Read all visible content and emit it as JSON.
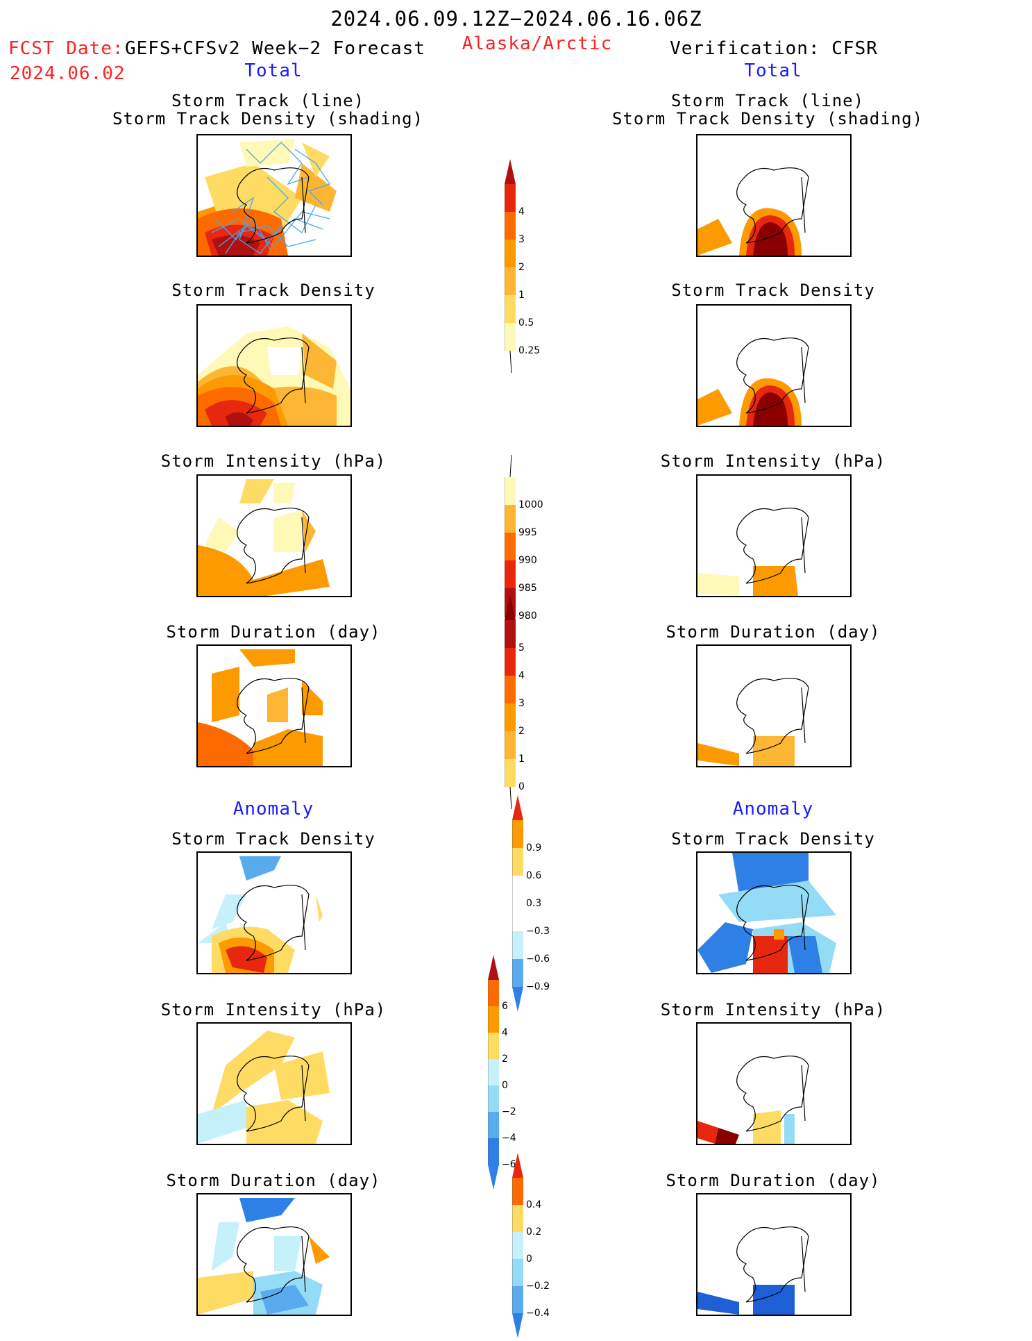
{
  "header": {
    "title": "2024.06.09.12Z−2024.06.16.06Z",
    "region": "Alaska/Arctic",
    "fcst_label": "FCST Date:",
    "fcst_model": "GEFS+CFSv2 Week−2 Forecast",
    "fcst_date": "2024.06.02",
    "verification": "Verification: CFSR"
  },
  "sections": {
    "total_left": "Total",
    "total_right": "Total",
    "anomaly_left": "Anomaly",
    "anomaly_right": "Anomaly"
  },
  "panel_titles": {
    "track_l1": "Storm Track (line)",
    "track_l2": "Storm Track Density (shading)",
    "density": "Storm Track Density",
    "intensity": "Storm Intensity (hPa)",
    "duration": "Storm Duration (day)"
  },
  "colors": {
    "warm": [
      "#fff9b8",
      "#fedc64",
      "#fdb634",
      "#fd9a00",
      "#fc6a00",
      "#e8280e",
      "#b01010",
      "#8a0000"
    ],
    "cool": [
      "#c6f0fa",
      "#94dcf5",
      "#5aaaee",
      "#2f80e6",
      "#1e5fd6"
    ],
    "track_line": "#4aa8e8"
  },
  "chart_data": [
    {
      "type": "heatmap",
      "name": "colorbar-track-density",
      "colorbar_labels": [
        "4",
        "3",
        "2",
        "1",
        "0.5",
        "0.25"
      ],
      "levels": [
        0.25,
        0.5,
        1,
        2,
        3,
        4
      ]
    },
    {
      "type": "heatmap",
      "name": "colorbar-intensity",
      "colorbar_labels": [
        "1000",
        "995",
        "990",
        "985",
        "980"
      ],
      "levels": [
        1000,
        995,
        990,
        985,
        980
      ]
    },
    {
      "type": "heatmap",
      "name": "colorbar-duration",
      "colorbar_labels": [
        "5",
        "4",
        "3",
        "2",
        "1",
        "0"
      ],
      "levels": [
        0,
        1,
        2,
        3,
        4,
        5
      ]
    },
    {
      "type": "heatmap",
      "name": "colorbar-density-anomaly",
      "colorbar_labels": [
        "0.9",
        "0.6",
        "0.3",
        "−0.3",
        "−0.6",
        "−0.9"
      ],
      "levels": [
        0.9,
        0.6,
        0.3,
        -0.3,
        -0.6,
        -0.9
      ]
    },
    {
      "type": "heatmap",
      "name": "colorbar-intensity-anomaly",
      "colorbar_labels": [
        "6",
        "4",
        "2",
        "0",
        "−2",
        "−4",
        "−6"
      ],
      "levels": [
        6,
        4,
        2,
        0,
        -2,
        -4,
        -6
      ]
    },
    {
      "type": "heatmap",
      "name": "colorbar-duration-anomaly",
      "colorbar_labels": [
        "0.4",
        "0.2",
        "0",
        "−0.2",
        "−0.4"
      ],
      "levels": [
        0.4,
        0.2,
        0,
        -0.2,
        -0.4
      ]
    }
  ]
}
